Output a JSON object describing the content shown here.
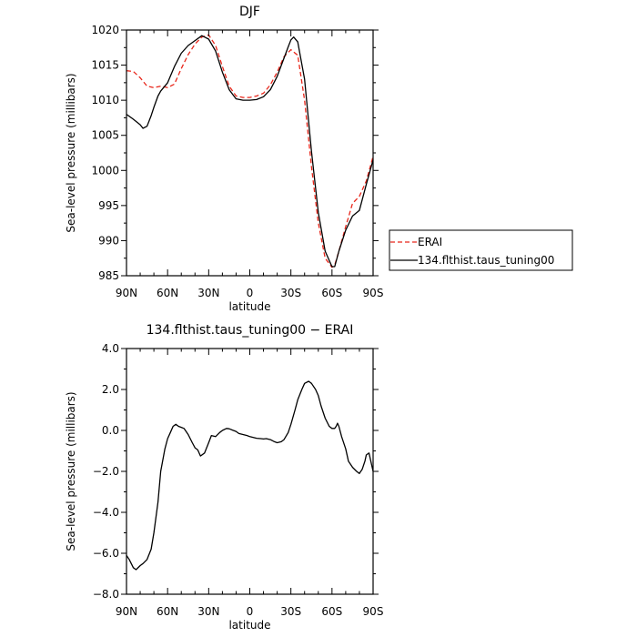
{
  "chart_data": [
    {
      "type": "line",
      "title": "DJF",
      "xlabel": "latitude",
      "ylabel": "Sea-level pressure (millibars)",
      "xlim": [
        90,
        -90
      ],
      "ylim": [
        985,
        1020
      ],
      "x_tick_values": [
        90,
        60,
        30,
        0,
        -30,
        -60,
        -90
      ],
      "x_tick_labels": [
        "90N",
        "60N",
        "30N",
        "0",
        "30S",
        "60S",
        "90S"
      ],
      "y_tick_values": [
        985,
        990,
        995,
        1000,
        1005,
        1010,
        1015,
        1020
      ],
      "y_tick_labels": [
        "985",
        "990",
        "995",
        "1000",
        "1005",
        "1010",
        "1015",
        "1020"
      ],
      "legend_position": "right",
      "series": [
        {
          "name": "ERAI",
          "color": "#e8261a",
          "dash": "dashed",
          "x": [
            90,
            85,
            80,
            75,
            70,
            65,
            60,
            55,
            50,
            45,
            40,
            35,
            30,
            25,
            20,
            15,
            10,
            5,
            0,
            -5,
            -10,
            -15,
            -20,
            -25,
            -30,
            -35,
            -40,
            -45,
            -50,
            -55,
            -60,
            -62,
            -65,
            -70,
            -75,
            -80,
            -85,
            -90
          ],
          "y": [
            1014.2,
            1014.1,
            1013.2,
            1012.0,
            1011.8,
            1012.0,
            1011.8,
            1012.3,
            1014.5,
            1016.5,
            1018.0,
            1019.0,
            1019.3,
            1017.8,
            1014.8,
            1012.0,
            1010.6,
            1010.4,
            1010.4,
            1010.6,
            1011.0,
            1012.2,
            1014.0,
            1016.2,
            1017.2,
            1016.4,
            1010.0,
            1000.5,
            992.5,
            987.5,
            986.2,
            986.5,
            988.5,
            992.0,
            995.3,
            996.3,
            998.5,
            1002.0
          ]
        },
        {
          "name": "134.flthist.taus_tuning00",
          "color": "#000000",
          "dash": "solid",
          "x": [
            90,
            85,
            80,
            78,
            75,
            72,
            70,
            67,
            65,
            60,
            55,
            50,
            45,
            40,
            35,
            30,
            25,
            20,
            15,
            10,
            5,
            0,
            -5,
            -10,
            -15,
            -20,
            -25,
            -28,
            -30,
            -32,
            -35,
            -40,
            -45,
            -50,
            -55,
            -60,
            -62,
            -65,
            -70,
            -75,
            -80,
            -85,
            -90
          ],
          "y": [
            1008.0,
            1007.3,
            1006.5,
            1006.0,
            1006.3,
            1007.8,
            1009.0,
            1010.6,
            1011.3,
            1012.5,
            1014.8,
            1016.7,
            1017.8,
            1018.5,
            1019.2,
            1018.7,
            1017.0,
            1014.0,
            1011.5,
            1010.2,
            1010.0,
            1010.0,
            1010.1,
            1010.5,
            1011.5,
            1013.4,
            1016.0,
            1017.6,
            1018.6,
            1019.0,
            1018.3,
            1013.0,
            1002.7,
            994.0,
            988.5,
            986.3,
            986.3,
            988.5,
            991.5,
            993.5,
            994.3,
            998.0,
            1001.5
          ]
        }
      ]
    },
    {
      "type": "line",
      "title": "134.flthist.taus_tuning00 − ERAI",
      "xlabel": "latitude",
      "ylabel": "Sea-level pressure (millibars)",
      "xlim": [
        90,
        -90
      ],
      "ylim": [
        -8.0,
        4.0
      ],
      "x_tick_values": [
        90,
        60,
        30,
        0,
        -30,
        -60,
        -90
      ],
      "x_tick_labels": [
        "90N",
        "60N",
        "30N",
        "0",
        "30S",
        "60S",
        "90S"
      ],
      "y_tick_values": [
        -8,
        -6,
        -4,
        -2,
        0,
        2,
        4
      ],
      "y_tick_labels": [
        "−8.0",
        "−6.0",
        "−4.0",
        "−2.0",
        "0.0",
        "2.0",
        "4.0"
      ],
      "series": [
        {
          "color": "#000000",
          "dash": "solid",
          "x": [
            90,
            88,
            85,
            83,
            80,
            78,
            75,
            72,
            70,
            67,
            65,
            62,
            60,
            58,
            56,
            54,
            52,
            50,
            48,
            45,
            42,
            40,
            38,
            36,
            33,
            30,
            28,
            25,
            22,
            20,
            17,
            15,
            12,
            10,
            8,
            5,
            2,
            0,
            -3,
            -5,
            -8,
            -10,
            -12,
            -15,
            -18,
            -20,
            -23,
            -25,
            -28,
            -30,
            -33,
            -35,
            -38,
            -40,
            -43,
            -45,
            -48,
            -50,
            -52,
            -55,
            -58,
            -60,
            -62,
            -63,
            -64,
            -65,
            -67,
            -70,
            -72,
            -75,
            -78,
            -80,
            -82,
            -84,
            -85,
            -87,
            -90
          ],
          "y": [
            -6.1,
            -6.3,
            -6.7,
            -6.8,
            -6.6,
            -6.5,
            -6.3,
            -5.8,
            -5.0,
            -3.5,
            -2.0,
            -0.9,
            -0.4,
            -0.1,
            0.2,
            0.3,
            0.2,
            0.15,
            0.1,
            -0.2,
            -0.6,
            -0.85,
            -0.95,
            -1.25,
            -1.1,
            -0.6,
            -0.25,
            -0.3,
            -0.1,
            0.0,
            0.1,
            0.08,
            0.0,
            -0.05,
            -0.15,
            -0.2,
            -0.25,
            -0.3,
            -0.35,
            -0.38,
            -0.4,
            -0.42,
            -0.4,
            -0.45,
            -0.55,
            -0.6,
            -0.55,
            -0.45,
            -0.1,
            0.3,
            1.0,
            1.5,
            2.0,
            2.3,
            2.4,
            2.3,
            2.0,
            1.7,
            1.2,
            0.6,
            0.2,
            0.1,
            0.1,
            0.2,
            0.35,
            0.2,
            -0.3,
            -0.9,
            -1.5,
            -1.8,
            -2.0,
            -2.1,
            -1.9,
            -1.5,
            -1.2,
            -1.1,
            -2.0
          ]
        }
      ]
    }
  ]
}
